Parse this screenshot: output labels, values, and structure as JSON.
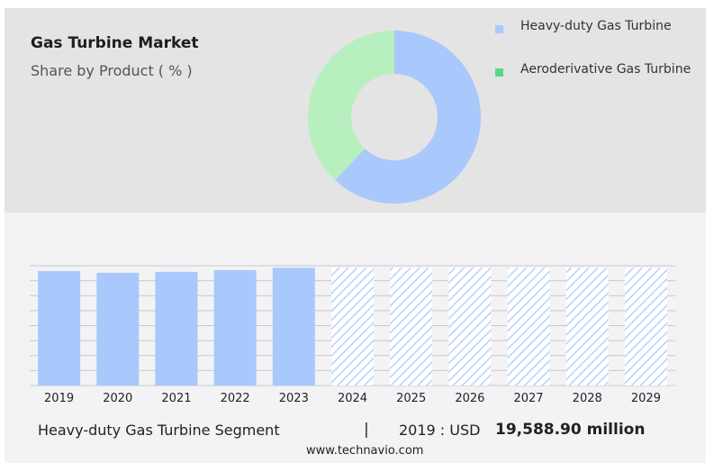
{
  "header": {
    "title": "Gas Turbine Market",
    "subtitle": "Share by Product ( % )"
  },
  "colors": {
    "heavy_duty": "#a9c8fb",
    "aeroderivative": "#b8efbf",
    "aeroderivative_legend": "#57d97d",
    "forecast_hatch": "#a9c8fb",
    "gridline": "#c8c8c8"
  },
  "chart_data": [
    {
      "type": "donut",
      "title": "Share by Product ( % )",
      "categories": [
        "Heavy-duty Gas Turbine",
        "Aeroderivative Gas Turbine"
      ],
      "values": [
        62,
        38
      ],
      "legend_position": "right"
    },
    {
      "type": "bar",
      "categories": [
        "2019",
        "2020",
        "2021",
        "2022",
        "2023",
        "2024",
        "2025",
        "2026",
        "2027",
        "2028",
        "2029"
      ],
      "values": [
        19588.9,
        19300,
        19450,
        19750,
        20150,
        20150,
        20150,
        20150,
        20150,
        20150,
        20150
      ],
      "forecast_start": "2024",
      "ylim": [
        0,
        20500
      ],
      "grid": true,
      "legend": false
    }
  ],
  "legend": {
    "items": [
      {
        "label": "Heavy-duty Gas Turbine"
      },
      {
        "label": "Aeroderivative Gas Turbine"
      }
    ]
  },
  "footer": {
    "segment": "Heavy-duty Gas Turbine Segment",
    "separator": "|",
    "year_usd": "2019 : USD",
    "value": "19,588.90 million",
    "source": "www.technavio.com"
  }
}
